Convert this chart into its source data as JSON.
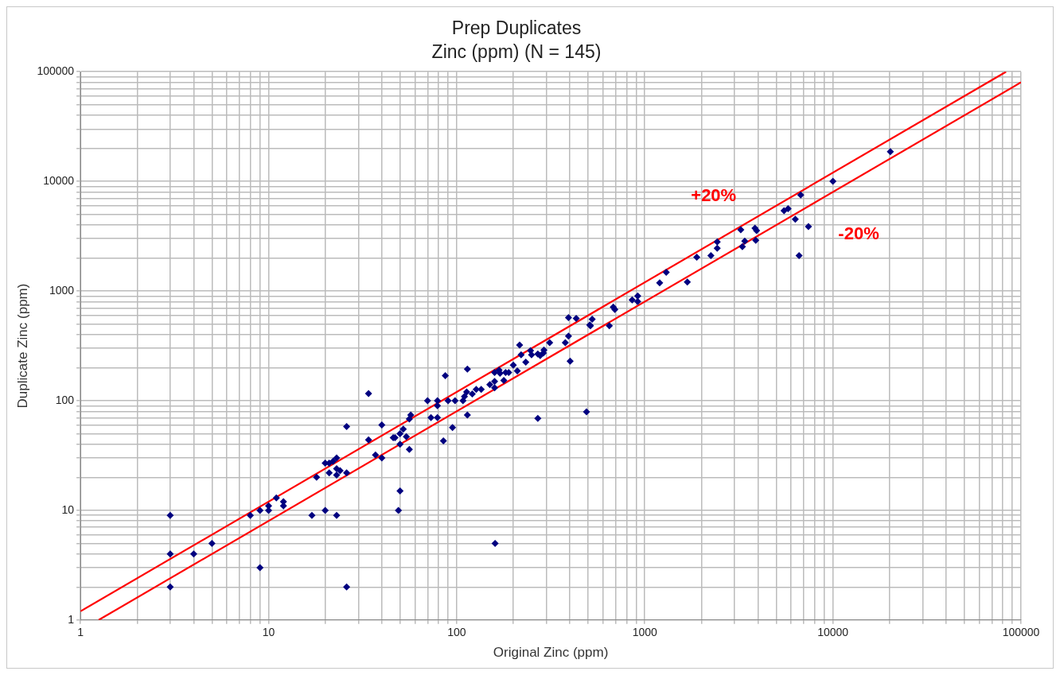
{
  "chart_data": {
    "type": "scatter",
    "title": "Prep Duplicates",
    "subtitle": "Zinc (ppm) (N = 145)",
    "xlabel": "Original Zinc (ppm)",
    "ylabel": "Duplicate Zinc (ppm)",
    "log": "xy",
    "grid": true,
    "legend": false,
    "xlim": [
      1,
      100000
    ],
    "ylim": [
      1,
      100000
    ],
    "xticks": [
      1,
      10,
      100,
      1000,
      10000,
      100000
    ],
    "yticks": [
      1,
      10,
      100,
      1000,
      10000,
      100000
    ],
    "series": [
      {
        "marker": "diamond",
        "color": "#000080",
        "x": [
          3,
          3,
          3,
          4,
          5,
          8,
          9,
          9,
          10,
          10,
          11,
          12,
          12,
          17,
          18,
          20,
          20,
          21,
          22,
          23,
          21,
          23,
          23,
          24,
          26,
          23,
          26,
          26,
          34,
          34,
          37,
          40,
          40,
          46,
          47,
          50,
          52,
          50,
          54,
          56,
          56,
          57,
          50,
          49,
          70,
          73,
          79,
          79,
          79,
          85,
          87,
          90,
          95,
          98,
          108,
          110,
          113,
          114,
          114,
          121,
          127,
          135,
          150,
          159,
          159,
          159,
          168,
          170,
          178,
          182,
          189,
          200,
          210,
          216,
          220,
          233,
          247,
          250,
          270,
          270,
          278,
          289,
          291,
          312,
          378,
          393,
          401,
          393,
          432,
          490,
          510,
          160,
          525,
          514,
          648,
          680,
          693,
          857,
          917,
          917,
          1200,
          1300,
          1683,
          1889,
          2246,
          2427,
          2427,
          3238,
          3399,
          3303,
          3853,
          3927,
          3890,
          5500,
          5777,
          6310,
          6610,
          6745,
          7413,
          10000,
          20200
        ],
        "values": [
          9,
          4,
          2,
          4,
          5,
          9,
          3,
          10,
          11,
          10,
          13,
          12,
          11,
          9,
          20,
          10,
          27,
          27,
          28,
          30,
          22,
          24,
          21,
          23,
          22,
          9,
          58,
          2,
          116,
          44,
          32,
          60,
          30,
          46,
          46,
          50,
          55,
          40,
          47,
          36,
          68,
          74,
          15,
          10,
          100,
          70,
          70,
          90,
          100,
          43,
          169,
          100,
          57,
          100,
          100,
          109,
          120,
          194,
          74,
          115,
          127,
          127,
          140,
          150,
          131,
          181,
          190,
          178,
          153,
          181,
          181,
          211,
          187,
          322,
          262,
          225,
          286,
          262,
          69,
          267,
          258,
          272,
          290,
          338,
          338,
          388,
          229,
          572,
          562,
          79,
          491,
          5,
          553,
          483,
          483,
          713,
          678,
          830,
          903,
          802,
          1185,
          1480,
          1205,
          2037,
          2107,
          2810,
          2454,
          3620,
          2858,
          2537,
          3746,
          3558,
          2904,
          5400,
          5623,
          4510,
          2107,
          7499,
          3873,
          10000,
          18700
        ]
      },
      {
        "type": "line",
        "name": "+20%",
        "marker": "none",
        "color": "#ff0000",
        "x": [
          1,
          83333
        ],
        "values": [
          1.2,
          100000
        ]
      },
      {
        "type": "line",
        "name": "-20%",
        "marker": "none",
        "color": "#ff0000",
        "x": [
          1.25,
          100000
        ],
        "values": [
          1,
          80000
        ]
      }
    ]
  }
}
